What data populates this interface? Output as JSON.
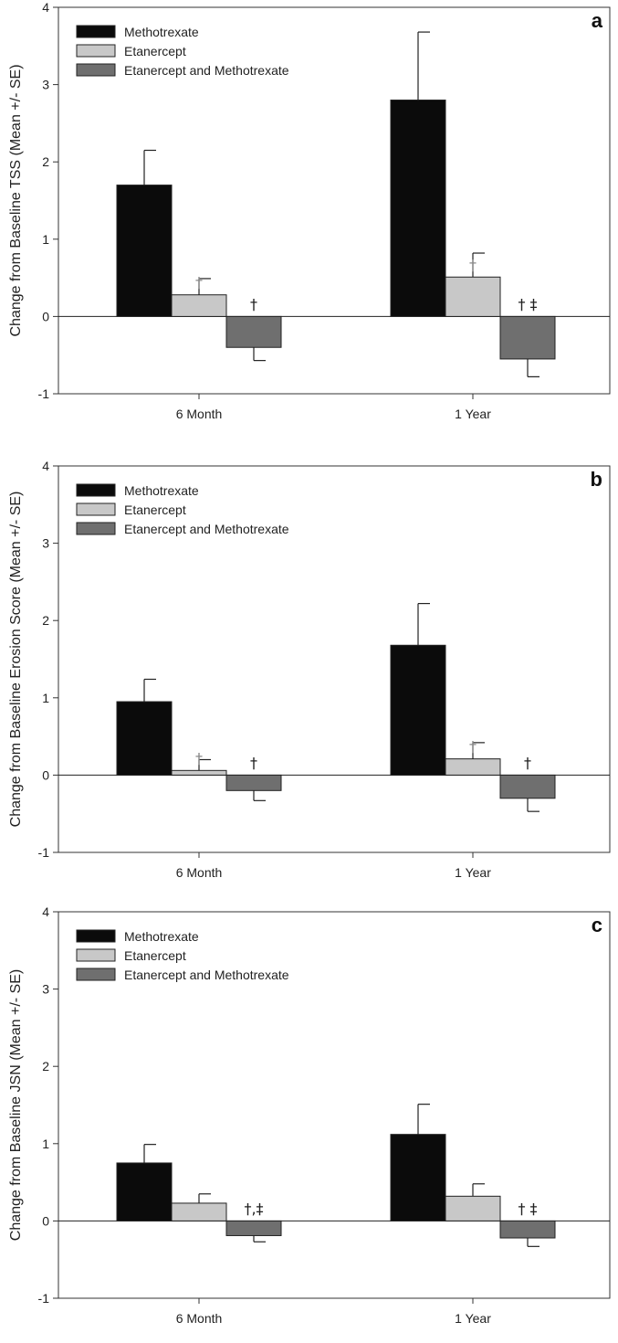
{
  "colors": {
    "methotrexate": "#0b0b0b",
    "etanercept": "#c8c8c8",
    "combo": "#6f6f6f",
    "sig_light": "#8a8a8a"
  },
  "chart_data": [
    {
      "type": "bar",
      "panel_letter": "a",
      "ylabel": "Change from Baseline TSS (Mean +/- SE)",
      "categories": [
        "6 Month",
        "1 Year"
      ],
      "ylim": [
        -1,
        4
      ],
      "yticks": [
        "-1",
        "0",
        "1",
        "2",
        "3",
        "4"
      ],
      "legend_position": "top-left",
      "series": [
        {
          "name": "Methotrexate",
          "values": [
            1.7,
            2.8
          ],
          "se": [
            0.45,
            0.88
          ],
          "annotations": [
            "",
            ""
          ]
        },
        {
          "name": "Etanercept",
          "values": [
            0.28,
            0.51
          ],
          "se": [
            0.21,
            0.31
          ],
          "annotations": [
            "†",
            "†"
          ]
        },
        {
          "name": "Etanercept and Methotrexate",
          "values": [
            -0.4,
            -0.55
          ],
          "se": [
            0.17,
            0.23
          ],
          "annotations": [
            "†",
            "† ‡"
          ]
        }
      ]
    },
    {
      "type": "bar",
      "panel_letter": "b",
      "ylabel": "Change from Baseline Erosion Score (Mean +/- SE)",
      "categories": [
        "6 Month",
        "1 Year"
      ],
      "ylim": [
        -1,
        4
      ],
      "yticks": [
        "-1",
        "0",
        "1",
        "2",
        "3",
        "4"
      ],
      "legend_position": "top-left",
      "series": [
        {
          "name": "Methotrexate",
          "values": [
            0.95,
            1.68
          ],
          "se": [
            0.29,
            0.54
          ],
          "annotations": [
            "",
            ""
          ]
        },
        {
          "name": "Etanercept",
          "values": [
            0.06,
            0.21
          ],
          "se": [
            0.14,
            0.21
          ],
          "annotations": [
            "†",
            "†"
          ]
        },
        {
          "name": "Etanercept and Methotrexate",
          "values": [
            -0.2,
            -0.3
          ],
          "se": [
            0.13,
            0.17
          ],
          "annotations": [
            "†",
            "†"
          ]
        }
      ]
    },
    {
      "type": "bar",
      "panel_letter": "c",
      "ylabel": "Change from Baseline JSN (Mean +/- SE)",
      "categories": [
        "6 Month",
        "1 Year"
      ],
      "ylim": [
        -1,
        4
      ],
      "yticks": [
        "-1",
        "0",
        "1",
        "2",
        "3",
        "4"
      ],
      "legend_position": "top-left",
      "series": [
        {
          "name": "Methotrexate",
          "values": [
            0.75,
            1.12
          ],
          "se": [
            0.24,
            0.39
          ],
          "annotations": [
            "",
            ""
          ]
        },
        {
          "name": "Etanercept",
          "values": [
            0.23,
            0.32
          ],
          "se": [
            0.12,
            0.16
          ],
          "annotations": [
            "",
            ""
          ]
        },
        {
          "name": "Etanercept and Methotrexate",
          "values": [
            -0.19,
            -0.22
          ],
          "se": [
            0.08,
            0.11
          ],
          "annotations": [
            "†,‡",
            "† ‡"
          ]
        }
      ]
    }
  ]
}
